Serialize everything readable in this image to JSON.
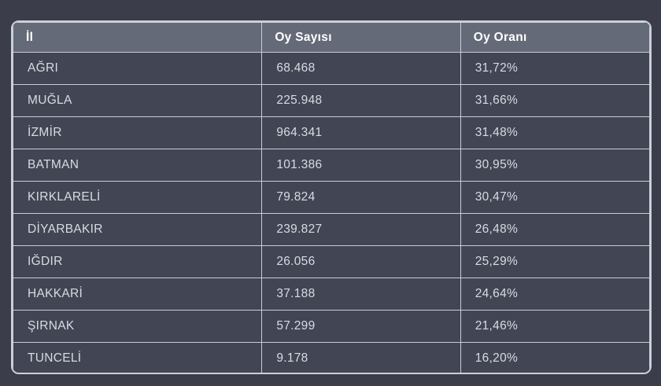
{
  "colors": {
    "page_background": "#3b3e4a",
    "header_background": "#656a78",
    "row_background": "#424554",
    "border": "#c9cdd8",
    "header_text": "#ffffff",
    "body_text": "#d9dbe2"
  },
  "chart_data": {
    "type": "table",
    "title": "",
    "columns": [
      "İl",
      "Oy Sayısı",
      "Oy Oranı"
    ],
    "rows": [
      [
        "AĞRI",
        "68.468",
        "31,72%"
      ],
      [
        "MUĞLA",
        "225.948",
        "31,66%"
      ],
      [
        "İZMİR",
        "964.341",
        "31,48%"
      ],
      [
        "BATMAN",
        "101.386",
        "30,95%"
      ],
      [
        "KIRKLARELİ",
        "79.824",
        "30,47%"
      ],
      [
        "DİYARBAKIR",
        "239.827",
        "26,48%"
      ],
      [
        "IĞDIR",
        "26.056",
        "25,29%"
      ],
      [
        "HAKKARİ",
        "37.188",
        "24,64%"
      ],
      [
        "ŞIRNAK",
        "57.299",
        "21,46%"
      ],
      [
        "TUNCELİ",
        "9.178",
        "16,20%"
      ]
    ]
  }
}
